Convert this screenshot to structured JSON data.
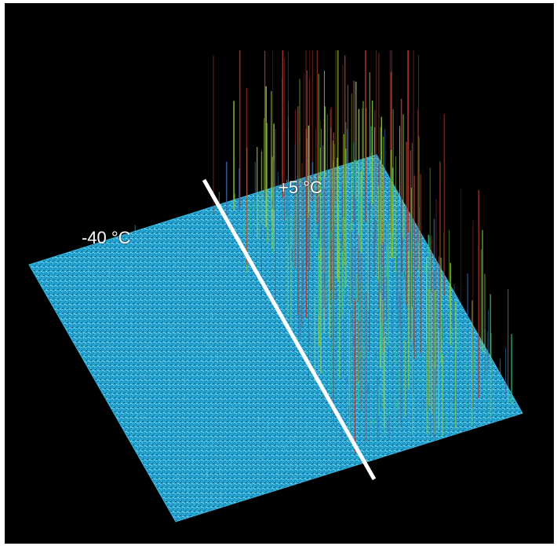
{
  "labels": {
    "cold": "-40 °C",
    "warm": "+5 °C"
  },
  "colors": {
    "background": "#000000",
    "surface": "#29a4d0",
    "surface_dark": "#14607f",
    "divider": "#ffffff",
    "spike_low": "#2fbf8f",
    "spike_mid": "#8fd040",
    "spike_high": "#b03a2e"
  }
}
